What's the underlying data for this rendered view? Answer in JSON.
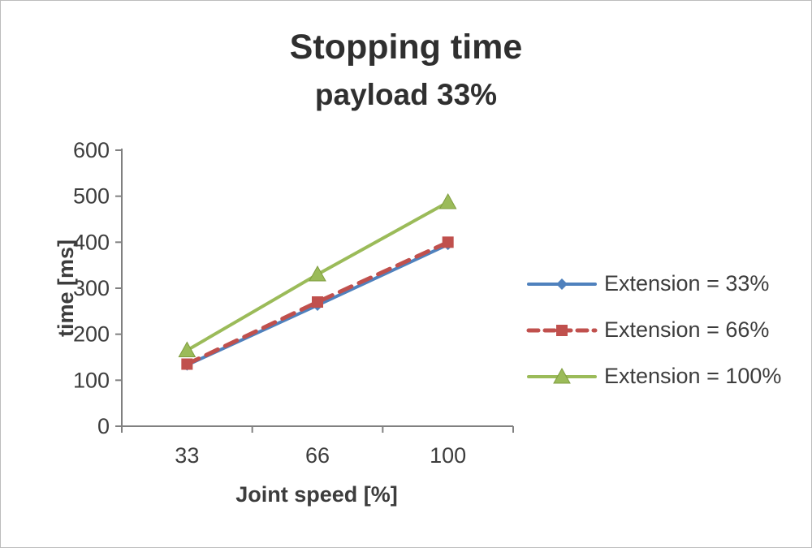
{
  "chart": {
    "title": "Stopping time",
    "subtitle": "payload 33%",
    "xlabel": "Joint speed [%]",
    "ylabel": "time [ms]"
  },
  "chart_data": {
    "type": "line",
    "categories": [
      "33",
      "66",
      "100"
    ],
    "series": [
      {
        "name": "Extension = 33%",
        "values": [
          133,
          263,
          395
        ],
        "color": "#4f81bd",
        "marker": "diamond",
        "dash": "solid"
      },
      {
        "name": "Extension = 66%",
        "values": [
          135,
          270,
          400
        ],
        "color": "#c0504d",
        "marker": "square",
        "dash": "dashed"
      },
      {
        "name": "Extension = 100%",
        "values": [
          165,
          330,
          487
        ],
        "color": "#9bbb59",
        "marker": "triangle",
        "dash": "solid"
      }
    ],
    "title": "Stopping time",
    "subtitle": "payload 33%",
    "xlabel": "Joint speed [%]",
    "ylabel": "time [ms]",
    "ylim": [
      0,
      600
    ],
    "ytick_step": 100,
    "grid": false,
    "legend_position": "right",
    "colors": {
      "axis_line": "#808080",
      "tick_text": "#3d3d3d",
      "title_text": "#2f2f2f"
    }
  }
}
